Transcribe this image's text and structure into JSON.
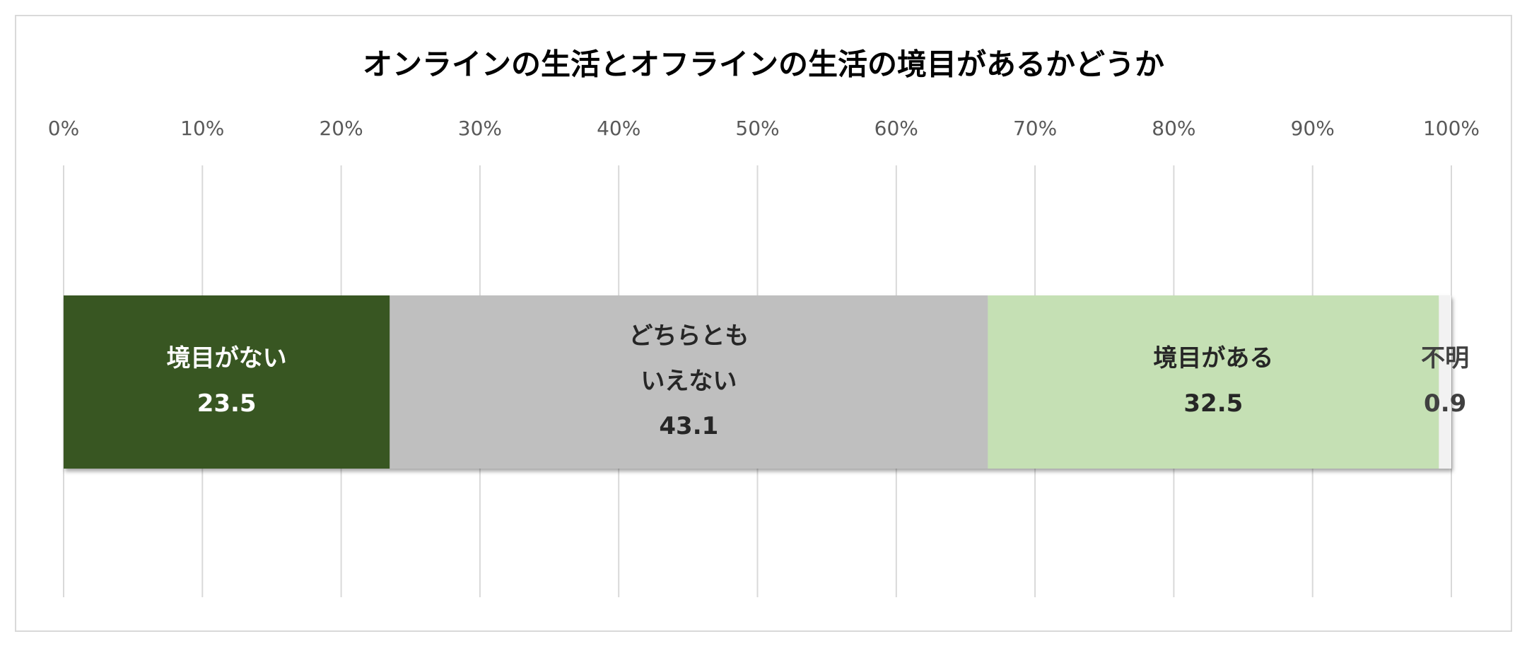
{
  "chart_data": {
    "type": "stacked-bar",
    "orientation": "horizontal",
    "title": "オンラインの生活とオフラインの生活の境目があるかどうか",
    "categories": [
      null
    ],
    "series": [
      {
        "name": "境目がない",
        "color": "#375623",
        "label_color": "#ffffff",
        "values": [
          23.5
        ]
      },
      {
        "name": "どちらとも\nいえない",
        "color": "#bfbfbf",
        "label_color": "#262626",
        "values": [
          43.1
        ]
      },
      {
        "name": "境目がある",
        "color": "#c5e0b4",
        "label_color": "#262626",
        "values": [
          32.5
        ]
      },
      {
        "name": "不明",
        "color": "#f2f2f2",
        "label_color": "#404040",
        "values": [
          0.9
        ]
      }
    ],
    "xlim": [
      0,
      100
    ],
    "xticks": [
      {
        "value": 0,
        "label": "0%"
      },
      {
        "value": 10,
        "label": "10%"
      },
      {
        "value": 20,
        "label": "20%"
      },
      {
        "value": 30,
        "label": "30%"
      },
      {
        "value": 40,
        "label": "40%"
      },
      {
        "value": 50,
        "label": "50%"
      },
      {
        "value": 60,
        "label": "60%"
      },
      {
        "value": 70,
        "label": "70%"
      },
      {
        "value": 80,
        "label": "80%"
      },
      {
        "value": 90,
        "label": "90%"
      },
      {
        "value": 100,
        "label": "100%"
      }
    ],
    "grid": true
  }
}
